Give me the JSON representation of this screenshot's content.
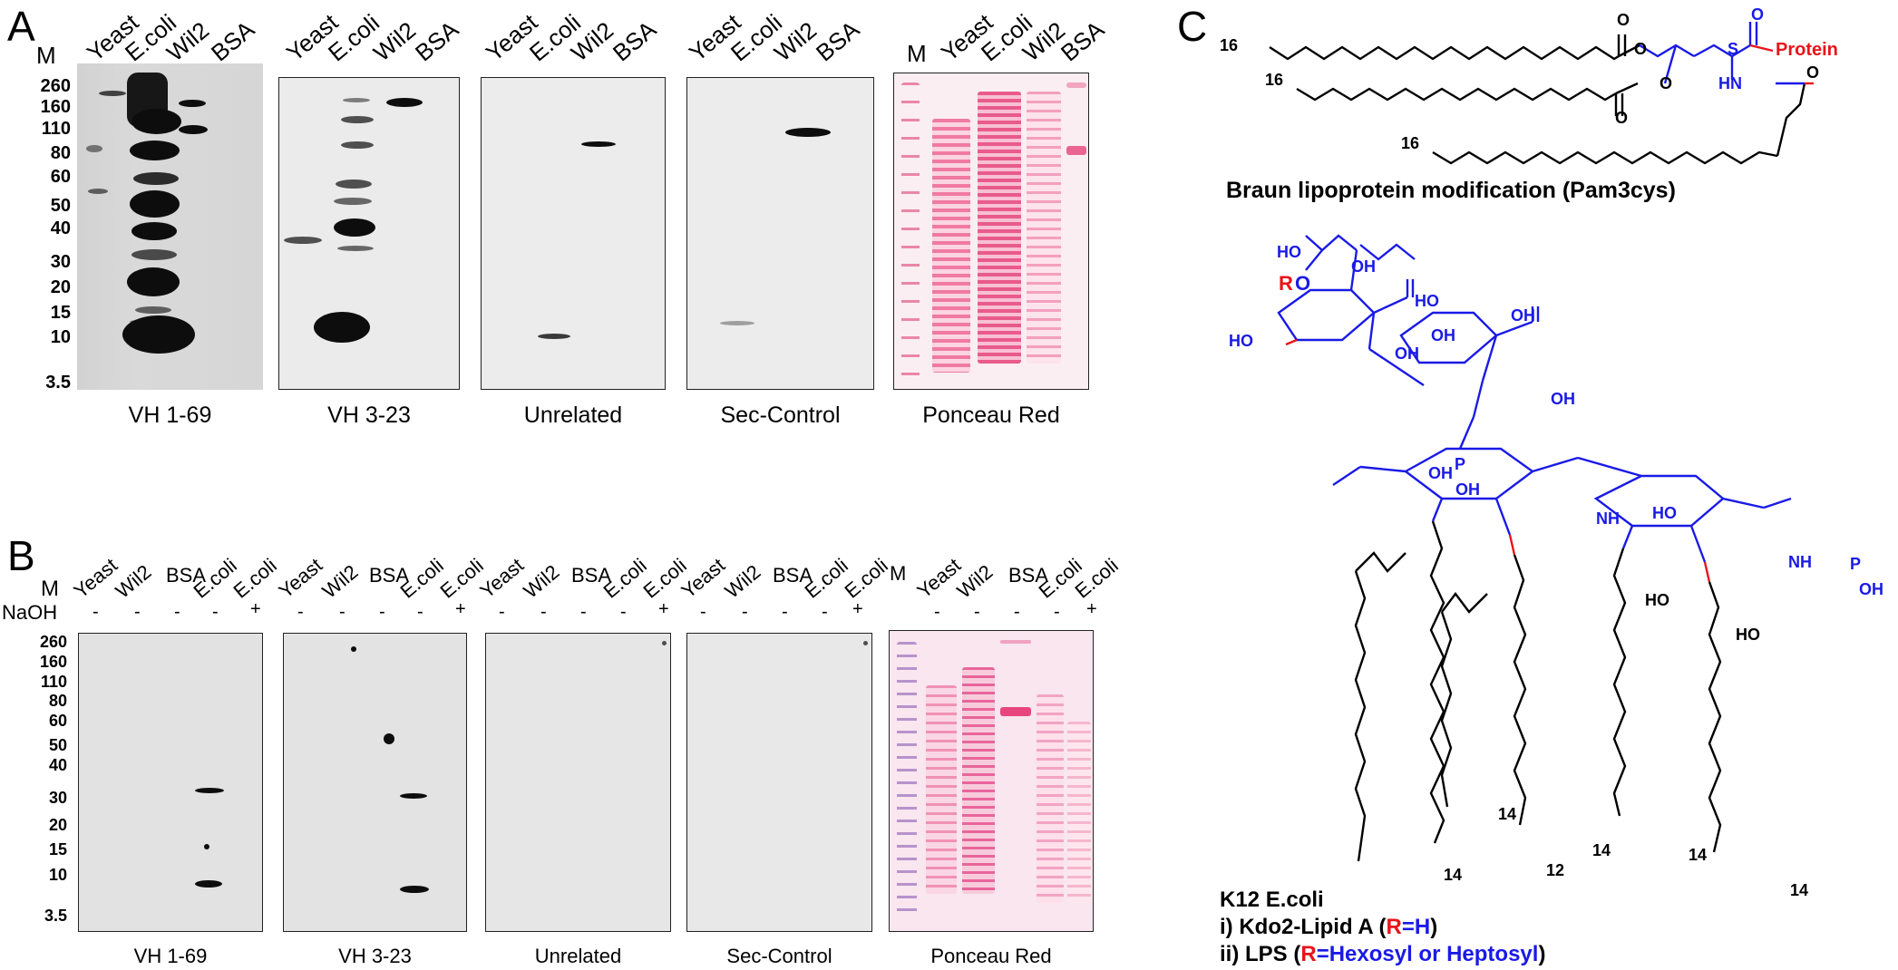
{
  "panel_a": {
    "letter": "A",
    "marker_label": "M",
    "mw_ladder": [
      "260",
      "160",
      "110",
      "80",
      "60",
      "50",
      "40",
      "30",
      "20",
      "15",
      "10",
      "3.5"
    ],
    "blots": [
      {
        "caption": "VH 1-69",
        "lanes": [
          "Yeast",
          "E.coli",
          "Wil2",
          "BSA"
        ]
      },
      {
        "caption": "VH 3-23",
        "lanes": [
          "Yeast",
          "E.coli",
          "Wil2",
          "BSA"
        ]
      },
      {
        "caption": "Unrelated",
        "lanes": [
          "Yeast",
          "E.coli",
          "Wil2",
          "BSA"
        ]
      },
      {
        "caption": "Sec-Control",
        "lanes": [
          "Yeast",
          "E.coli",
          "Wil2",
          "BSA"
        ]
      },
      {
        "caption": "Ponceau Red",
        "lanes": [
          "M",
          "Yeast",
          "E.coli",
          "Wil2",
          "BSA"
        ]
      }
    ]
  },
  "panel_b": {
    "letter": "B",
    "marker_label": "M",
    "naoh_label": "NaOH",
    "mw_ladder": [
      "260",
      "160",
      "110",
      "80",
      "60",
      "50",
      "40",
      "30",
      "20",
      "15",
      "10",
      "3.5"
    ],
    "naoh_signs": [
      "-",
      "-",
      "-",
      "-",
      "+"
    ],
    "blots": [
      {
        "caption": "VH 1-69",
        "lanes": [
          "Yeast",
          "Wil2",
          "BSA",
          "E.coli",
          "E.coli"
        ]
      },
      {
        "caption": "VH 3-23",
        "lanes": [
          "Yeast",
          "Wil2",
          "BSA",
          "E.coli",
          "E.coli"
        ]
      },
      {
        "caption": "Unrelated",
        "lanes": [
          "Yeast",
          "Wil2",
          "BSA",
          "E.coli",
          "E.coli"
        ]
      },
      {
        "caption": "Sec-Control",
        "lanes": [
          "Yeast",
          "Wil2",
          "BSA",
          "E.coli",
          "E.coli"
        ]
      },
      {
        "caption": "Ponceau Red",
        "lanes": [
          "M",
          "Yeast",
          "Wil2",
          "BSA",
          "E.coli",
          "E.coli"
        ]
      }
    ]
  },
  "panel_c": {
    "letter": "C",
    "pam3cys": {
      "chain_lengths": [
        "16",
        "16",
        "16"
      ],
      "o_label": "O",
      "s_label": "S",
      "nh_label": "HN",
      "protein_label": "Protein",
      "caption": "Braun lipoprotein modification (Pam3cys)"
    },
    "lipid_a": {
      "r_label": "R",
      "o": "O",
      "ho": "HO",
      "oh": "OH",
      "nh": "NH",
      "p": "P",
      "chain_lengths": [
        "14",
        "12",
        "14",
        "14",
        "14",
        "14"
      ],
      "caption_line1": "K12 E.coli",
      "caption_line2_prefix": "i) Kdo2-Lipid A (",
      "caption_line2_r": "R",
      "caption_line2_val": "=H",
      "caption_line2_suffix": ")",
      "caption_line3_prefix": "ii) LPS (",
      "caption_line3_r": "R",
      "caption_line3_val": "=Hexosyl or Heptosyl",
      "caption_line3_suffix": ")"
    }
  },
  "colors": {
    "band": "#0d0d0d",
    "ponceau": "#ee6a96",
    "structure_blue": "#1a1ae6",
    "structure_red": "#e8141b"
  }
}
